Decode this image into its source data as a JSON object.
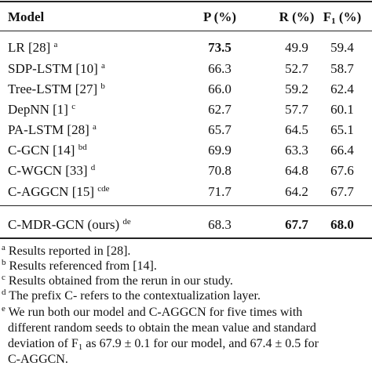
{
  "table": {
    "header": {
      "model": "Model",
      "P": "P (%)",
      "R": "R (%)",
      "F": {
        "base": "F",
        "sub": "1",
        "rest": " (%)"
      }
    },
    "rows": [
      {
        "model": "LR [28]",
        "note": "a",
        "P": "73.5",
        "R": "49.9",
        "F": "59.4",
        "bold": [
          "P"
        ]
      },
      {
        "model": "SDP-LSTM [10]",
        "note": "a",
        "P": "66.3",
        "R": "52.7",
        "F": "58.7",
        "bold": []
      },
      {
        "model": "Tree-LSTM [27]",
        "note": "b",
        "P": "66.0",
        "R": "59.2",
        "F": "62.4",
        "bold": []
      },
      {
        "model": "DepNN [1]",
        "note": "c",
        "P": "62.7",
        "R": "57.7",
        "F": "60.1",
        "bold": []
      },
      {
        "model": "PA-LSTM [28]",
        "note": "a",
        "P": "65.7",
        "R": "64.5",
        "F": "65.1",
        "bold": []
      },
      {
        "model": "C-GCN [14]",
        "note": "bd",
        "P": "69.9",
        "R": "63.3",
        "F": "66.4",
        "bold": []
      },
      {
        "model": "C-WGCN [33]",
        "note": "d",
        "P": "70.8",
        "R": "64.8",
        "F": "67.6",
        "bold": []
      },
      {
        "model": "C-AGGCN [15]",
        "note": "cde",
        "P": "71.7",
        "R": "64.2",
        "F": "67.7",
        "bold": []
      }
    ],
    "ours": {
      "model": "C-MDR-GCN (ours)",
      "note": "de",
      "P": "68.3",
      "R": "67.7",
      "F": "68.0",
      "bold": [
        "R",
        "F"
      ]
    }
  },
  "footnotes": [
    {
      "mark": "a",
      "lines": [
        [
          "Results reported in [28]."
        ]
      ]
    },
    {
      "mark": "b",
      "lines": [
        [
          "Results referenced from [14]."
        ]
      ]
    },
    {
      "mark": "c",
      "lines": [
        [
          "Results obtained from the rerun in our study."
        ]
      ]
    },
    {
      "mark": "d",
      "lines": [
        [
          "The prefix C- refers to the contextualization layer."
        ]
      ]
    },
    {
      "mark": "e",
      "lines": [
        [
          "We run both our model and C-AGGCN for five times with"
        ],
        [
          "different random seeds to obtain the mean value and standard"
        ],
        [
          "deviation of F",
          "1",
          " as 67.9 ± 0.1 for our model, and 67.4 ± 0.5 for"
        ],
        [
          "C-AGGCN."
        ]
      ]
    }
  ]
}
